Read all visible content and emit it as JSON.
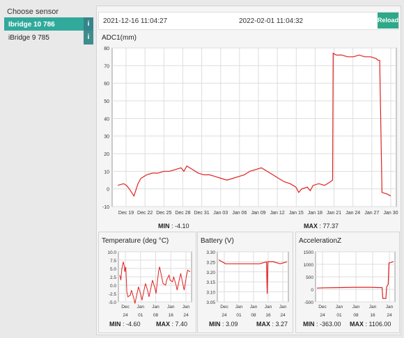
{
  "sidebar": {
    "title": "Choose sensor",
    "items": [
      {
        "label": "Ibridge 10 786",
        "info": "i"
      },
      {
        "label": "iBridge 9 785",
        "info": "i"
      }
    ]
  },
  "toolbar": {
    "date_from": "2021-12-16 11:04:27",
    "date_to": "2022-02-01 11:04:32",
    "reload_label": "Reload"
  },
  "main_chart": {
    "title": "ADC1(mm)",
    "min_label": "MIN",
    "min_value": ": -4.10",
    "max_label": "MAX",
    "max_value": ": 77.37"
  },
  "temp_chart": {
    "title": "Temperature (deg °C)",
    "min_label": "MIN",
    "min_value": ": -4.60",
    "max_label": "MAX",
    "max_value": ": 7.40"
  },
  "battery_chart": {
    "title": "Battery (V)",
    "min_label": "MIN",
    "min_value": ": 3.09",
    "max_label": "MAX",
    "max_value": ": 3.27"
  },
  "accel_chart": {
    "title": "AccelerationZ",
    "min_label": "MIN",
    "min_value": ": -363.00",
    "max_label": "MAX",
    "max_value": ": 1106.00"
  },
  "chart_data": [
    {
      "type": "line",
      "title": "ADC1(mm)",
      "color": "#e02020",
      "ylim": [
        -10,
        80
      ],
      "yticks": [
        -10,
        0,
        10,
        20,
        30,
        40,
        50,
        60,
        70,
        80
      ],
      "xticks": [
        "Dec 19",
        "Dec 22",
        "Dec 25",
        "Dec 28",
        "Dec 31",
        "Jan 03",
        "Jan 06",
        "Jan 09",
        "Jan 12",
        "Jan 15",
        "Jan 18",
        "Jan 21",
        "Jan 24",
        "Jan 27",
        "Jan 30"
      ],
      "grid": true,
      "series": [
        {
          "points": [
            [
              0,
              2
            ],
            [
              1,
              3
            ],
            [
              1.5,
              2
            ],
            [
              2,
              0
            ],
            [
              2.8,
              -4
            ],
            [
              3,
              -2
            ],
            [
              3.5,
              3
            ],
            [
              4,
              6
            ],
            [
              5,
              8
            ],
            [
              6,
              9
            ],
            [
              7,
              9
            ],
            [
              8,
              10
            ],
            [
              9,
              10
            ],
            [
              10,
              11
            ],
            [
              11,
              12
            ],
            [
              11.5,
              10
            ],
            [
              12,
              13
            ],
            [
              13,
              11
            ],
            [
              14,
              9
            ],
            [
              15,
              8
            ],
            [
              16,
              8
            ],
            [
              17,
              7
            ],
            [
              18,
              6
            ],
            [
              19,
              5
            ],
            [
              20,
              6
            ],
            [
              21,
              7
            ],
            [
              22,
              8
            ],
            [
              23,
              10
            ],
            [
              24,
              11
            ],
            [
              25,
              12
            ],
            [
              26,
              10
            ],
            [
              27,
              8
            ],
            [
              28,
              6
            ],
            [
              29,
              4
            ],
            [
              30,
              3
            ],
            [
              31,
              1
            ],
            [
              31.5,
              -2
            ],
            [
              32,
              0
            ],
            [
              33,
              1
            ],
            [
              33.5,
              -1
            ],
            [
              34,
              2
            ],
            [
              35,
              3
            ],
            [
              36,
              2
            ],
            [
              37,
              4
            ],
            [
              37.4,
              5
            ],
            [
              37.5,
              77
            ],
            [
              38,
              76
            ],
            [
              39,
              76
            ],
            [
              40,
              75
            ],
            [
              41,
              75
            ],
            [
              42,
              76
            ],
            [
              43,
              75
            ],
            [
              44,
              75
            ],
            [
              45,
              74
            ],
            [
              45.3,
              73
            ],
            [
              45.6,
              73
            ],
            [
              46,
              -2
            ],
            [
              47,
              -3
            ],
            [
              47.5,
              -4
            ]
          ],
          "x_range": [
            -1,
            48.5
          ]
        }
      ]
    },
    {
      "type": "line",
      "title": "Temperature (deg °C)",
      "color": "#e02020",
      "ylim": [
        -5,
        10
      ],
      "yticks": [
        "-5.0",
        "-2.5",
        "0.0",
        "2.5",
        "5.0",
        "7.5",
        "10.0"
      ],
      "xticks_top": [
        "Dec",
        "Jan",
        "Jan",
        "Jan",
        "Jan"
      ],
      "xticks_bottom": [
        "24",
        "01",
        "08",
        "16",
        "24"
      ],
      "grid": true
    },
    {
      "type": "line",
      "title": "Battery (V)",
      "color": "#e02020",
      "ylim": [
        3.05,
        3.3
      ],
      "yticks": [
        "3.05",
        "3.10",
        "3.15",
        "3.20",
        "3.25",
        "3.30"
      ],
      "xticks_top": [
        "Dec",
        "Jan",
        "Jan",
        "Jan",
        "Jan"
      ],
      "xticks_bottom": [
        "24",
        "01",
        "08",
        "16",
        "24"
      ],
      "grid": true
    },
    {
      "type": "line",
      "title": "AccelerationZ",
      "color": "#e02020",
      "ylim": [
        -500,
        1500
      ],
      "yticks": [
        "-500",
        "0",
        "500",
        "1000",
        "1500"
      ],
      "xticks_top": [
        "Dec",
        "Jan",
        "Jan",
        "Jan",
        "Jan"
      ],
      "xticks_bottom": [
        "24",
        "01",
        "08",
        "16",
        "24"
      ],
      "grid": true
    }
  ]
}
